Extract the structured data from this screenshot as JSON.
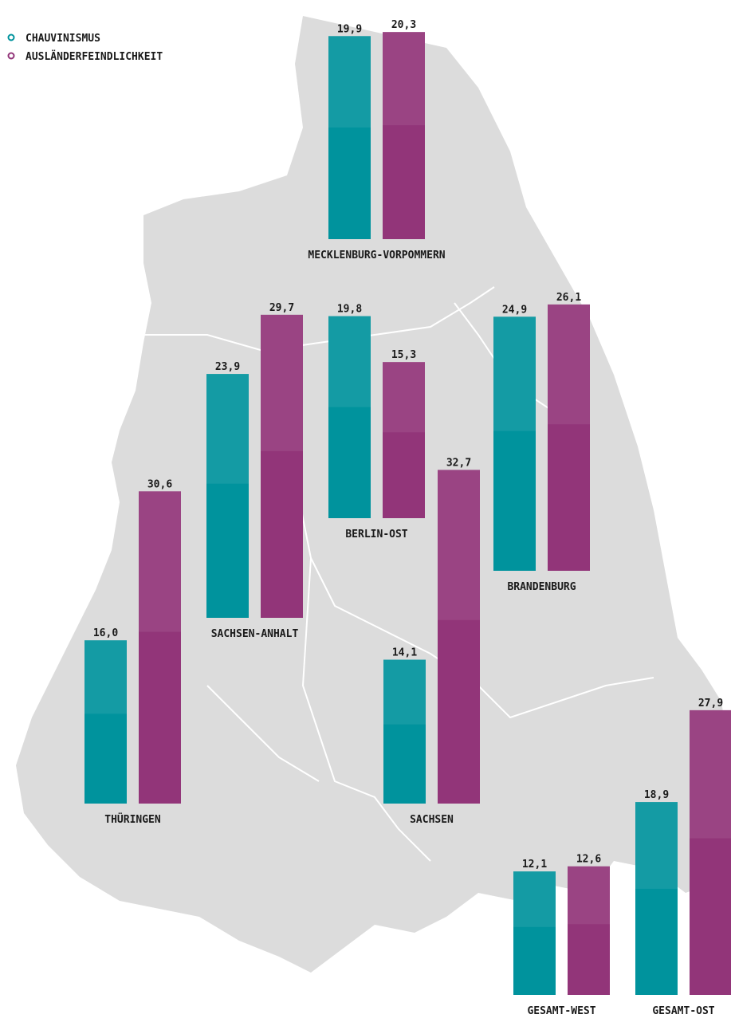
{
  "chart_data": {
    "type": "bar",
    "categories": [
      "MECKLENBURG-VORPOMMERN",
      "BERLIN-OST",
      "BRANDENBURG",
      "SACHSEN-ANHALT",
      "THÜRINGEN",
      "SACHSEN",
      "GESAMT-WEST",
      "GESAMT-OST"
    ],
    "series": [
      {
        "name": "CHAUVINISMUS",
        "color": "#00939d",
        "values": [
          19.9,
          19.8,
          24.9,
          23.9,
          16.0,
          14.1,
          12.1,
          18.9
        ],
        "value_labels": [
          "19,9",
          "19,8",
          "24,9",
          "23,9",
          "16,0",
          "14,1",
          "12,1",
          "18,9"
        ]
      },
      {
        "name": "AUSLÄNDERFEINDLICHKEIT",
        "color": "#923579",
        "values": [
          20.3,
          15.3,
          26.1,
          29.7,
          30.6,
          32.7,
          12.6,
          27.9
        ],
        "value_labels": [
          "20,3",
          "15,3",
          "26,1",
          "29,7",
          "30,6",
          "32,7",
          "12,6",
          "27,9"
        ]
      }
    ]
  }
}
